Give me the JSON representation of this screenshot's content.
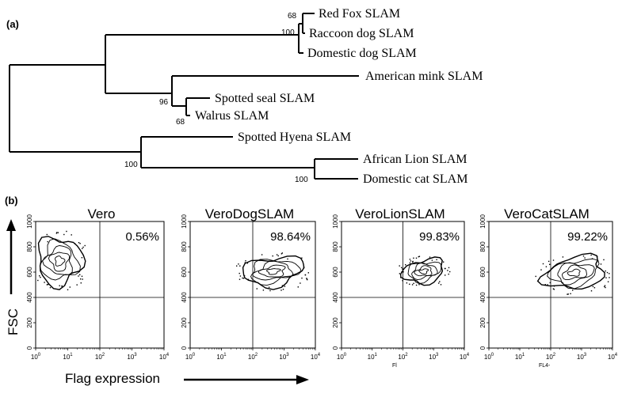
{
  "panel_a": {
    "label": "(a)",
    "taxa": [
      "Red Fox SLAM",
      "Raccoon dog SLAM",
      "Domestic dog SLAM",
      "American mink SLAM",
      "Spotted seal SLAM",
      "Walrus SLAM",
      "Spotted Hyena SLAM",
      "African Lion SLAM",
      "Domestic cat SLAM"
    ],
    "bootstrap": {
      "fox_raccoon": "68",
      "canid_clade": "100",
      "mink_pinniped": "96",
      "seal_walrus": "68",
      "feliform_clade": "100",
      "lion_cat": "100"
    }
  },
  "panel_b": {
    "label": "(b)",
    "y_axis_label": "FSC",
    "x_axis_label": "Flag expression",
    "y_ticks": [
      "1000",
      "800",
      "600",
      "400",
      "200",
      "0"
    ],
    "x_ticks": [
      {
        "base": "10",
        "exp": "0"
      },
      {
        "base": "10",
        "exp": "1"
      },
      {
        "base": "10",
        "exp": "2"
      },
      {
        "base": "10",
        "exp": "3"
      },
      {
        "base": "10",
        "exp": "4"
      }
    ],
    "plots": [
      {
        "title": "Vero",
        "percent": "0.56%",
        "x_caption": ""
      },
      {
        "title": "VeroDogSLAM",
        "percent": "98.64%",
        "x_caption": ""
      },
      {
        "title": "VeroLionSLAM",
        "percent": "99.83%",
        "x_caption": "Fl"
      },
      {
        "title": "VeroCatSLAM",
        "percent": "99.22%",
        "x_caption": "FL4-"
      }
    ]
  }
}
